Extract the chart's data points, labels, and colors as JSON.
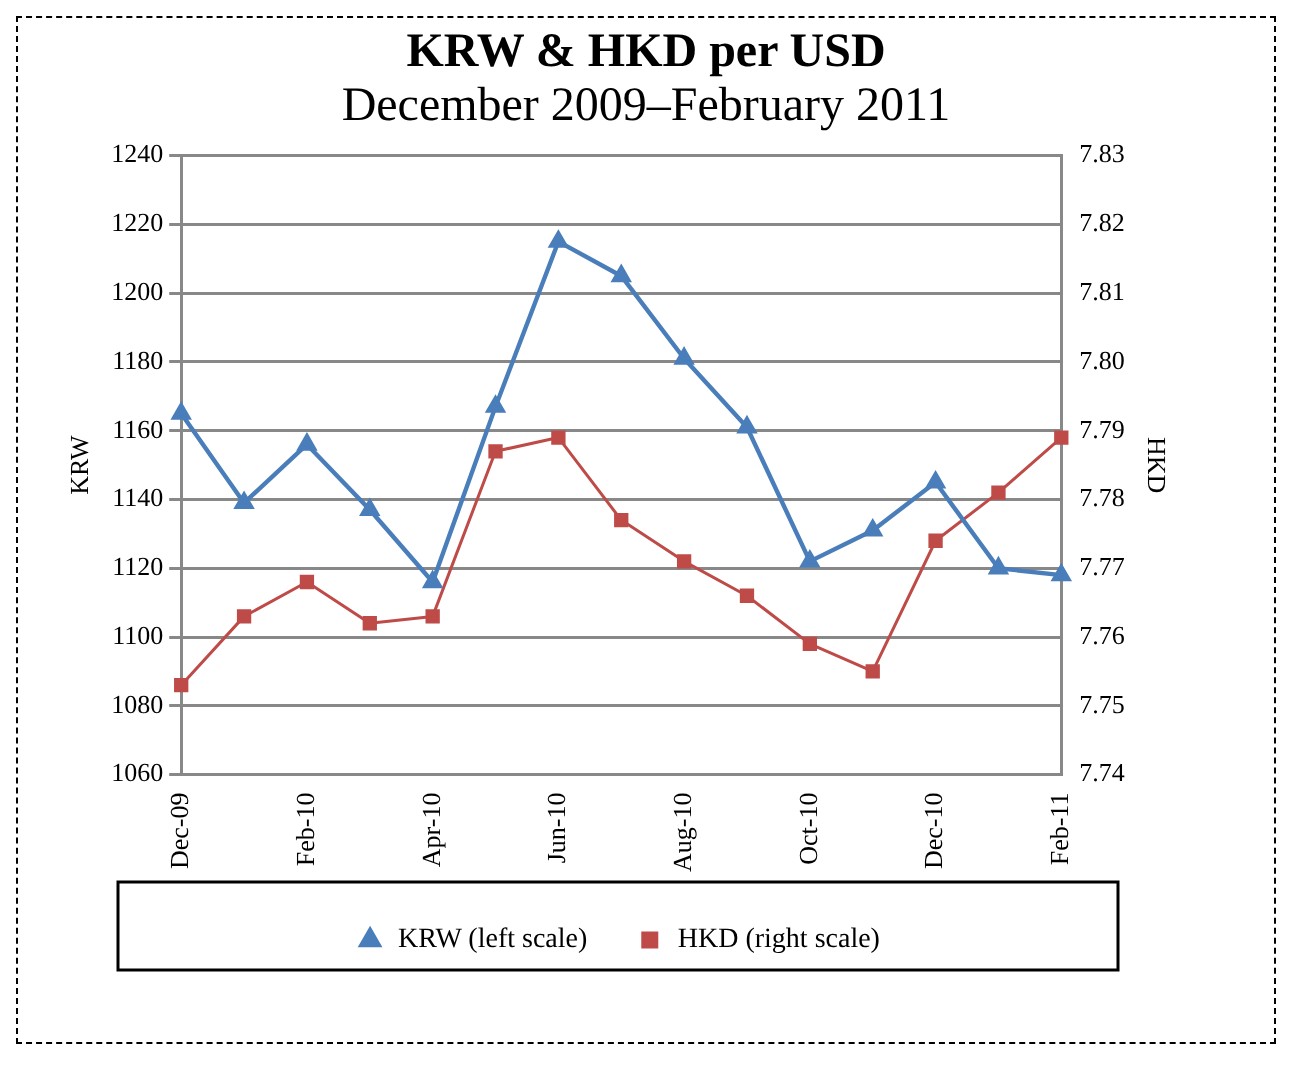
{
  "chart_data": {
    "type": "line",
    "title": "KRW & HKD per USD",
    "subtitle": "December 2009–February 2011",
    "ylabel": "KRW",
    "y2label": "HKD",
    "categories": [
      "Dec-09",
      null,
      "Feb-10",
      null,
      "Apr-10",
      null,
      "Jun-10",
      null,
      "Aug-10",
      null,
      "Oct-10",
      null,
      "Dec-10",
      null,
      "Feb-11"
    ],
    "series": [
      {
        "name": "KRW (left scale)",
        "color": "#4a7ebb",
        "marker": "triangle",
        "values": [
          1165,
          1139,
          1156,
          1137,
          1116,
          1167,
          1215,
          1205,
          1181,
          1161,
          1122,
          1131,
          1145,
          1120,
          1118
        ]
      },
      {
        "name": "HKD (right scale)",
        "color": "#be4b48",
        "marker": "square",
        "axis": "y2",
        "values": [
          7.753,
          7.763,
          7.768,
          7.762,
          7.763,
          7.787,
          7.789,
          7.777,
          7.771,
          7.766,
          7.759,
          7.755,
          7.774,
          7.781,
          7.789
        ]
      }
    ],
    "ylim": [
      1060,
      1240
    ],
    "yticks": [
      1060,
      1080,
      1100,
      1120,
      1140,
      1160,
      1180,
      1200,
      1220,
      1240
    ],
    "y2lim": [
      7.74,
      7.83
    ],
    "y2ticks": [
      7.74,
      7.75,
      7.76,
      7.77,
      7.78,
      7.79,
      {
        "value": 7.8,
        "label": "7.80"
      },
      7.81,
      7.82,
      7.83
    ],
    "grid": "y",
    "legend": "bottom"
  }
}
